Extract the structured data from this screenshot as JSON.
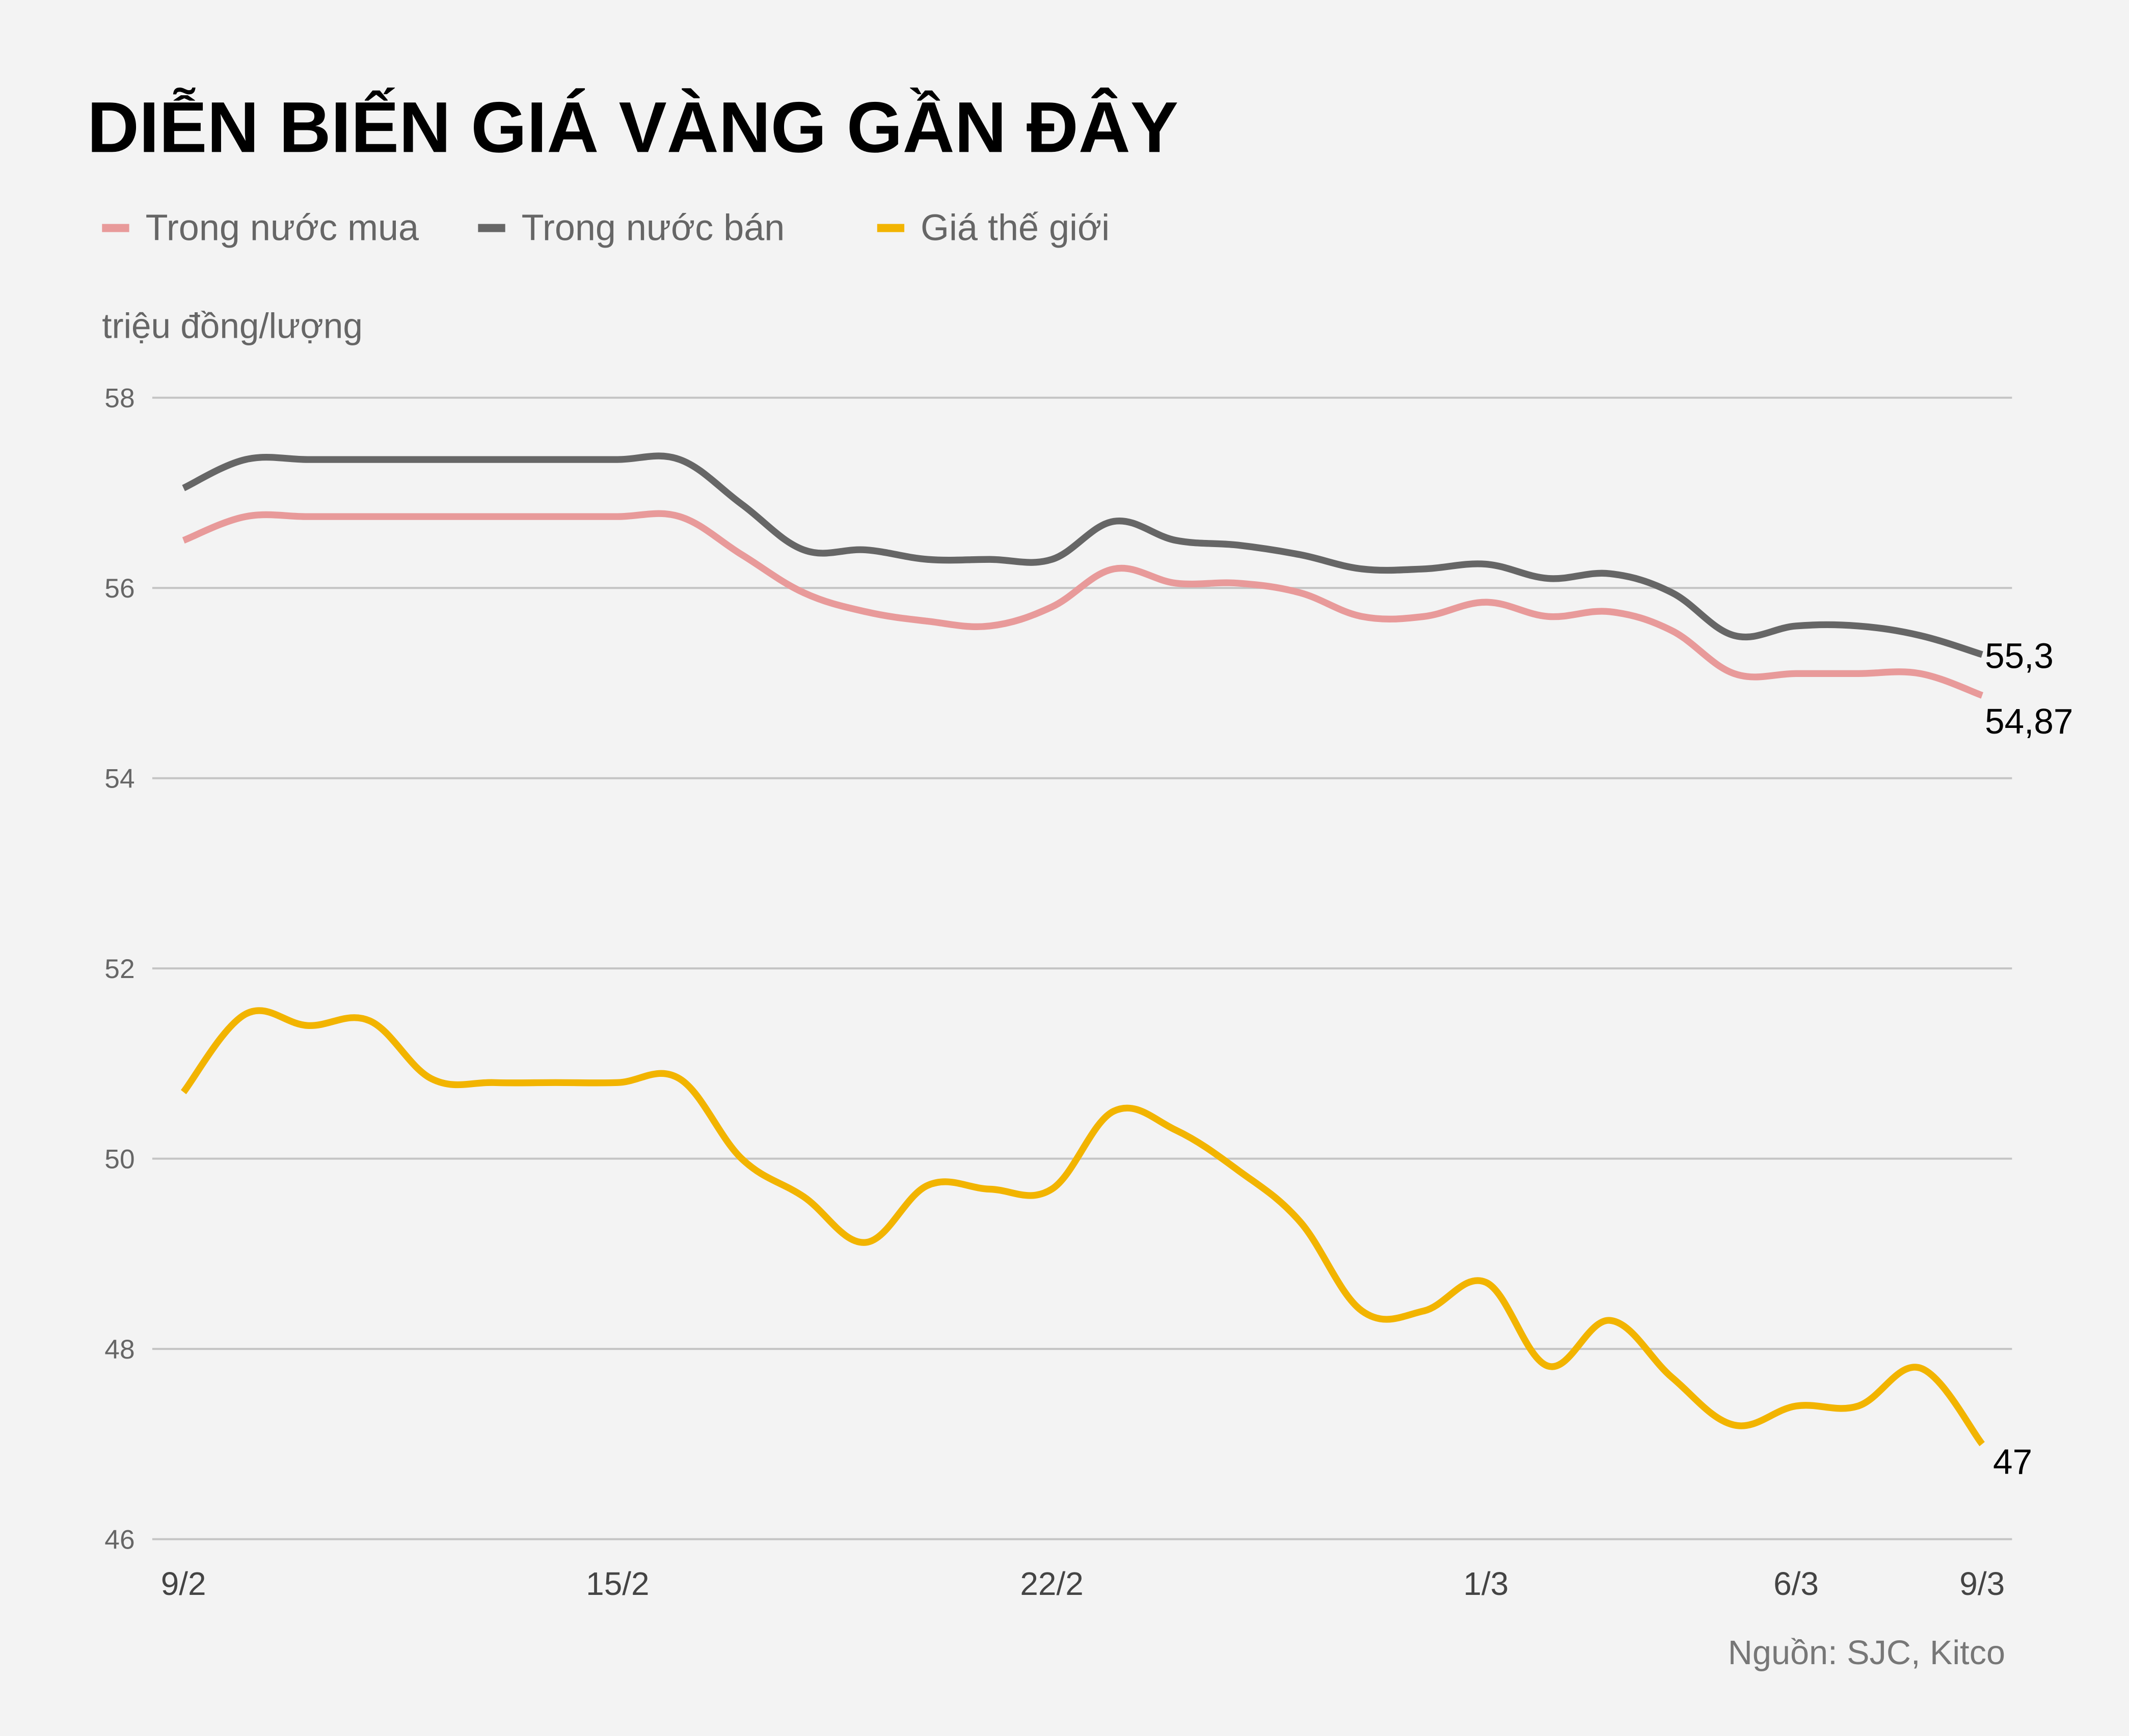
{
  "title": "DIỄN BIẾN GIÁ VÀNG GẦN ĐÂY",
  "source": "Nguồn: SJC, Kitco",
  "chart_data": {
    "type": "line",
    "title": "DIỄN BIẾN GIÁ VÀNG GẦN ĐÂY",
    "ylabel": "triệu đồng/lượng",
    "xlabel": "",
    "ylim": [
      46,
      58
    ],
    "yticks": [
      46,
      48,
      50,
      52,
      54,
      56,
      58
    ],
    "grid": true,
    "legend_placement": "top-left",
    "smoothed": true,
    "point_count": 30,
    "x_ticks": [
      {
        "index": 0,
        "label": "9/2"
      },
      {
        "index": 7,
        "label": "15/2"
      },
      {
        "index": 14,
        "label": "22/2"
      },
      {
        "index": 21,
        "label": "1/3"
      },
      {
        "index": 26,
        "label": "6/3"
      },
      {
        "index": 29,
        "label": "9/3"
      }
    ],
    "series": [
      {
        "name": "Trong nước mua",
        "color": "#e89a9a",
        "end_label": "54,87",
        "values": [
          56.5,
          56.75,
          56.75,
          56.75,
          56.75,
          56.75,
          56.75,
          56.75,
          56.75,
          56.35,
          55.95,
          55.75,
          55.65,
          55.6,
          55.8,
          56.2,
          56.05,
          56.05,
          55.95,
          55.7,
          55.7,
          55.85,
          55.7,
          55.75,
          55.55,
          55.1,
          55.1,
          55.1,
          55.1,
          54.87
        ]
      },
      {
        "name": "Trong nước bán",
        "color": "#666666",
        "end_label": "55,3",
        "values": [
          57.05,
          57.35,
          57.35,
          57.35,
          57.35,
          57.35,
          57.35,
          57.35,
          57.35,
          56.88,
          56.4,
          56.4,
          56.3,
          56.3,
          56.3,
          56.7,
          56.5,
          56.45,
          56.35,
          56.2,
          56.2,
          56.25,
          56.1,
          56.15,
          55.95,
          55.5,
          55.6,
          55.6,
          55.5,
          55.3
        ]
      },
      {
        "name": "Giá thế giới",
        "color": "#f2b400",
        "end_label": "47",
        "values": [
          50.7,
          51.52,
          51.4,
          51.45,
          50.84,
          50.8,
          50.8,
          50.8,
          50.84,
          50.0,
          49.6,
          49.12,
          49.72,
          49.68,
          49.68,
          50.5,
          50.3,
          49.88,
          49.34,
          48.4,
          48.4,
          48.7,
          47.82,
          48.3,
          47.7,
          47.2,
          47.4,
          47.4,
          47.8,
          47.0
        ]
      }
    ]
  }
}
